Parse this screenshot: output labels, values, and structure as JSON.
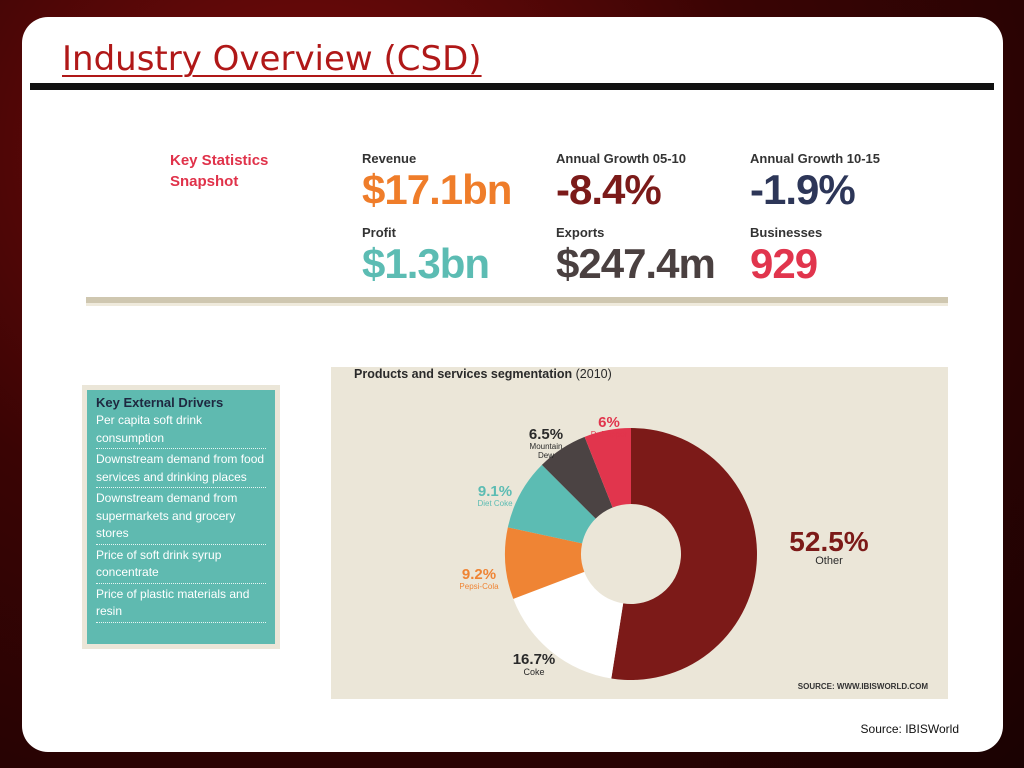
{
  "slide": {
    "title": "Industry Overview (CSD)",
    "footer_source": "Source: IBISWorld"
  },
  "stats": {
    "label": "Key Statistics Snapshot",
    "items": [
      {
        "label": "Revenue",
        "value": "$17.1bn",
        "color": "#ef7d2a"
      },
      {
        "label": "Annual Growth 05-10",
        "value": "-8.4%",
        "color": "#7b1a19"
      },
      {
        "label": "Annual Growth 10-15",
        "value": "-1.9%",
        "color": "#2d3658"
      },
      {
        "label": "Profit",
        "value": "$1.3bn",
        "color": "#5cbcb3"
      },
      {
        "label": "Exports",
        "value": "$247.4m",
        "color": "#4a4040"
      },
      {
        "label": "Businesses",
        "value": "929",
        "color": "#e1354d"
      }
    ]
  },
  "drivers": {
    "title": "Key External Drivers",
    "items": [
      "Per capita soft drink consumption",
      "Downstream demand from food services and drinking places",
      "Downstream demand from supermarkets and grocery stores",
      "Price of soft drink syrup concentrate",
      "Price of plastic materials and resin"
    ]
  },
  "chart_data": {
    "type": "pie",
    "variant": "donut",
    "title": "Products and services segmentation",
    "subtitle": "(2010)",
    "source": "SOURCE: WWW.IBISWORLD.COM",
    "slices": [
      {
        "label": "Other",
        "value": 52.5,
        "value_label": "52.5%",
        "color": "#7c1a18"
      },
      {
        "label": "Coke",
        "value": 16.7,
        "value_label": "16.7%",
        "color": "#ffffff"
      },
      {
        "label": "Pepsi-Cola",
        "value": 9.2,
        "value_label": "9.2%",
        "color": "#ef8434"
      },
      {
        "label": "Diet Coke",
        "value": 9.1,
        "value_label": "9.1%",
        "color": "#5cbcb3"
      },
      {
        "label": "Mountain Dew",
        "value": 6.5,
        "value_label": "6.5%",
        "color": "#4b4343"
      },
      {
        "label": "Dr Pepper",
        "value": 6,
        "value_label": "6%",
        "color": "#e1354d"
      }
    ]
  }
}
